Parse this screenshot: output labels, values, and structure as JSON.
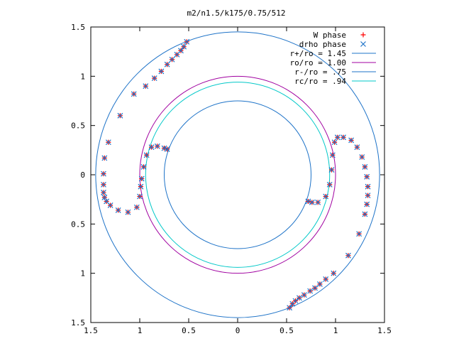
{
  "chart_data": {
    "type": "scatter",
    "title": "m2/n1.5/k175/0.75/512",
    "xlabel": "",
    "ylabel": "",
    "xlim": [
      -1.5,
      1.5
    ],
    "ylim": [
      -1.5,
      1.5
    ],
    "x_ticks": [
      -1.5,
      -1,
      -0.5,
      0,
      0.5,
      1,
      1.5
    ],
    "y_ticks": [
      -1.5,
      -1,
      -0.5,
      0,
      0.5,
      1,
      1.5
    ],
    "x_tick_labels": [
      "1.5",
      "1",
      "0.5",
      "0",
      "0.5",
      "1",
      "1.5"
    ],
    "y_tick_labels": [
      "1.5",
      "1",
      "0.5",
      "0",
      "0.5",
      "1",
      "1.5"
    ],
    "grid": false,
    "legend_position": "top-right",
    "circles": [
      {
        "name": "r+/ro = 1.45",
        "radius": 1.45,
        "color": "#1e73c8"
      },
      {
        "name": "ro/ro = 1.00",
        "radius": 1.0,
        "color": "#a000a0"
      },
      {
        "name": "r-/ro = .75",
        "radius": 0.75,
        "color": "#1e73c8"
      },
      {
        "name": "rc/ro = .94",
        "radius": 0.94,
        "color": "#00c8c8"
      }
    ],
    "series": [
      {
        "name": "W phase",
        "marker": "plus",
        "color": "#ff0000",
        "x": [
          -0.52,
          -0.55,
          -0.58,
          -0.62,
          -0.67,
          -0.72,
          -0.78,
          -0.85,
          -0.94,
          -1.06,
          -1.2,
          -1.32,
          -1.36,
          -1.37,
          -1.37,
          -1.37,
          -1.36,
          -1.34,
          -1.3,
          -1.22,
          -1.12,
          -1.03,
          -1.0,
          -0.99,
          -0.98,
          -0.96,
          -0.93,
          -0.88,
          -0.82,
          -0.75,
          -0.72,
          0.72,
          0.76,
          0.82,
          0.9,
          0.94,
          0.96,
          0.97,
          0.99,
          1.02,
          1.08,
          1.16,
          1.22,
          1.27,
          1.3,
          1.32,
          1.33,
          1.33,
          1.32,
          1.3,
          1.24,
          1.13,
          0.98,
          0.9,
          0.84,
          0.79,
          0.74,
          0.68,
          0.63,
          0.59,
          0.56,
          0.53
        ],
        "y": [
          1.35,
          1.3,
          1.26,
          1.22,
          1.17,
          1.12,
          1.05,
          0.98,
          0.9,
          0.82,
          0.6,
          0.33,
          0.17,
          0.01,
          -0.1,
          -0.18,
          -0.23,
          -0.27,
          -0.31,
          -0.36,
          -0.38,
          -0.33,
          -0.22,
          -0.12,
          -0.04,
          0.08,
          0.2,
          0.28,
          0.29,
          0.27,
          0.26,
          -0.27,
          -0.28,
          -0.28,
          -0.22,
          -0.1,
          0.05,
          0.2,
          0.33,
          0.38,
          0.38,
          0.35,
          0.28,
          0.18,
          0.08,
          -0.02,
          -0.12,
          -0.21,
          -0.3,
          -0.4,
          -0.6,
          -0.82,
          -1.0,
          -1.06,
          -1.11,
          -1.15,
          -1.18,
          -1.22,
          -1.25,
          -1.28,
          -1.31,
          -1.35
        ]
      },
      {
        "name": "drho phase",
        "marker": "cross",
        "color": "#1e73c8",
        "x": [
          -0.52,
          -0.55,
          -0.58,
          -0.62,
          -0.67,
          -0.72,
          -0.78,
          -0.85,
          -0.94,
          -1.06,
          -1.2,
          -1.32,
          -1.36,
          -1.37,
          -1.37,
          -1.37,
          -1.36,
          -1.34,
          -1.3,
          -1.22,
          -1.12,
          -1.03,
          -1.0,
          -0.99,
          -0.98,
          -0.96,
          -0.93,
          -0.88,
          -0.82,
          -0.75,
          -0.72,
          0.72,
          0.76,
          0.82,
          0.9,
          0.94,
          0.96,
          0.97,
          0.99,
          1.02,
          1.08,
          1.16,
          1.22,
          1.27,
          1.3,
          1.32,
          1.33,
          1.33,
          1.32,
          1.3,
          1.24,
          1.13,
          0.98,
          0.9,
          0.84,
          0.79,
          0.74,
          0.68,
          0.63,
          0.59,
          0.56,
          0.53
        ],
        "y": [
          1.35,
          1.3,
          1.26,
          1.22,
          1.17,
          1.12,
          1.05,
          0.98,
          0.9,
          0.82,
          0.6,
          0.33,
          0.17,
          0.01,
          -0.1,
          -0.18,
          -0.23,
          -0.27,
          -0.31,
          -0.36,
          -0.38,
          -0.33,
          -0.22,
          -0.12,
          -0.04,
          0.08,
          0.2,
          0.28,
          0.29,
          0.27,
          0.26,
          -0.27,
          -0.28,
          -0.28,
          -0.22,
          -0.1,
          0.05,
          0.2,
          0.33,
          0.38,
          0.38,
          0.35,
          0.28,
          0.18,
          0.08,
          -0.02,
          -0.12,
          -0.21,
          -0.3,
          -0.4,
          -0.6,
          -0.82,
          -1.0,
          -1.06,
          -1.11,
          -1.15,
          -1.18,
          -1.22,
          -1.25,
          -1.28,
          -1.31,
          -1.35
        ]
      }
    ]
  }
}
